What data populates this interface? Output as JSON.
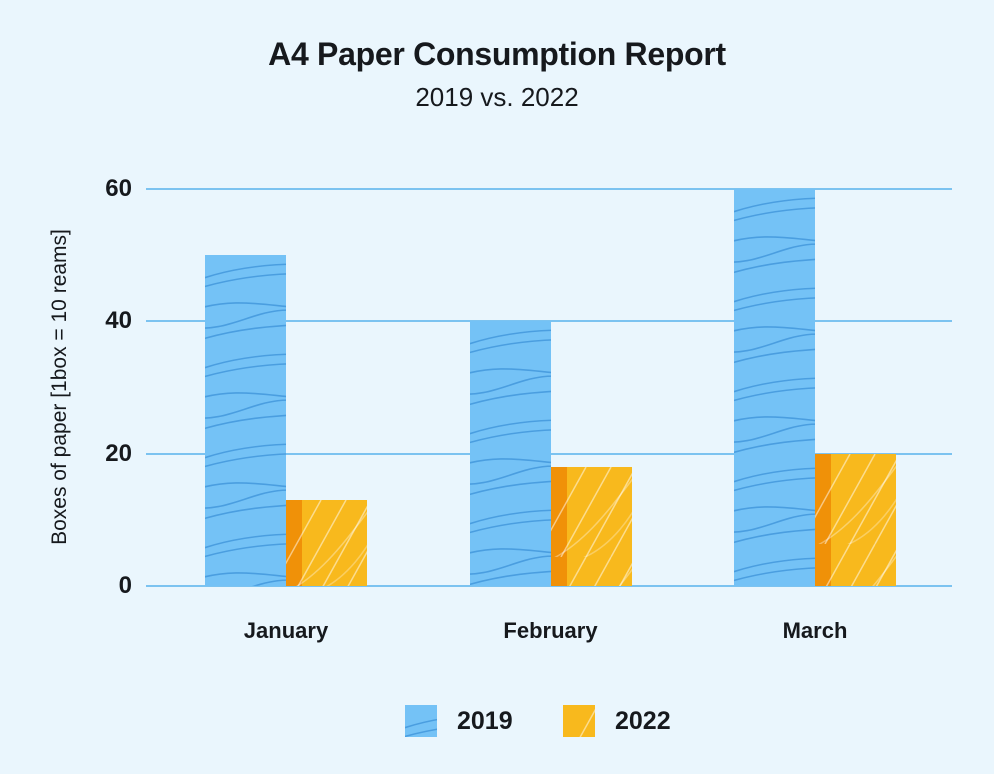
{
  "title": "A4 Paper Consumption Report",
  "subtitle": "2019 vs. 2022",
  "chart_data": {
    "type": "bar",
    "categories": [
      "January",
      "February",
      "March"
    ],
    "series": [
      {
        "name": "2019",
        "color": "#74c2f6",
        "values": [
          50,
          40,
          60
        ]
      },
      {
        "name": "2022",
        "color": "#f8b91d",
        "values": [
          13,
          18,
          20
        ]
      }
    ],
    "title": "A4 Paper Consumption Report",
    "subtitle": "2019 vs. 2022",
    "xlabel": "",
    "ylabel": "Boxes of paper [1box = 10 reams]",
    "ylim": [
      0,
      60
    ],
    "yticks": [
      0,
      20,
      40,
      60
    ],
    "grid": true,
    "legend_position": "bottom"
  },
  "colors": {
    "background": "#eaf6fd",
    "gridline": "#7cc3f0",
    "text": "#16191d",
    "bar_2019": "#74c2f6",
    "bar_2019_texture": "#3c92d8",
    "bar_2022": "#f8b91d",
    "bar_2022_texture": "#ffffff",
    "bar_2022_edge": "#f09108"
  }
}
